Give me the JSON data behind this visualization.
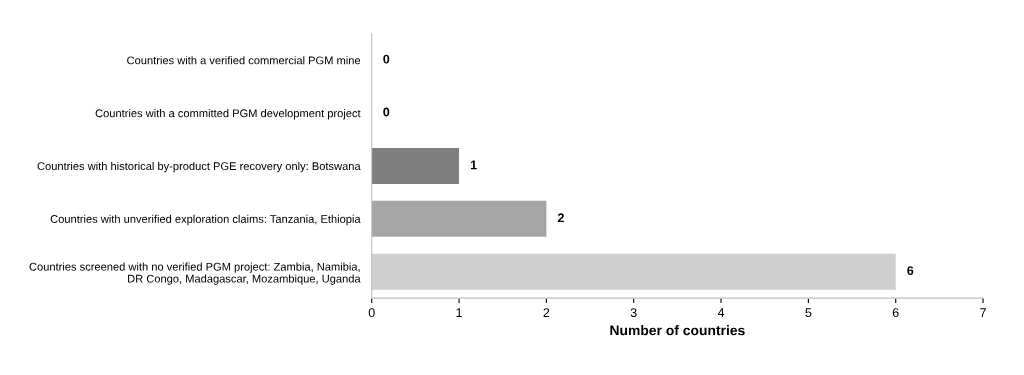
{
  "chart_data": {
    "type": "bar",
    "orientation": "horizontal",
    "categories": [
      "Countries with a verified commercial PGM mine",
      "Countries with a committed PGM development project",
      "Countries with historical by-product PGE recovery only: Botswana",
      "Countries with unverified exploration claims: Tanzania, Ethiopia",
      "Countries screened with no verified PGM project: Zambia, Namibia,\nDR Congo, Madagascar, Mozambique, Uganda"
    ],
    "values": [
      0,
      0,
      1,
      2,
      6
    ],
    "colors": [
      "#7f7f7f",
      "#7f7f7f",
      "#7f7f7f",
      "#a5a5a5",
      "#d0cfd0"
    ],
    "xlabel": "Number of countries",
    "xlim": [
      0,
      7
    ],
    "xticks": [
      0,
      1,
      2,
      3,
      4,
      5,
      6,
      7
    ],
    "data_labels": true,
    "grid": false
  }
}
